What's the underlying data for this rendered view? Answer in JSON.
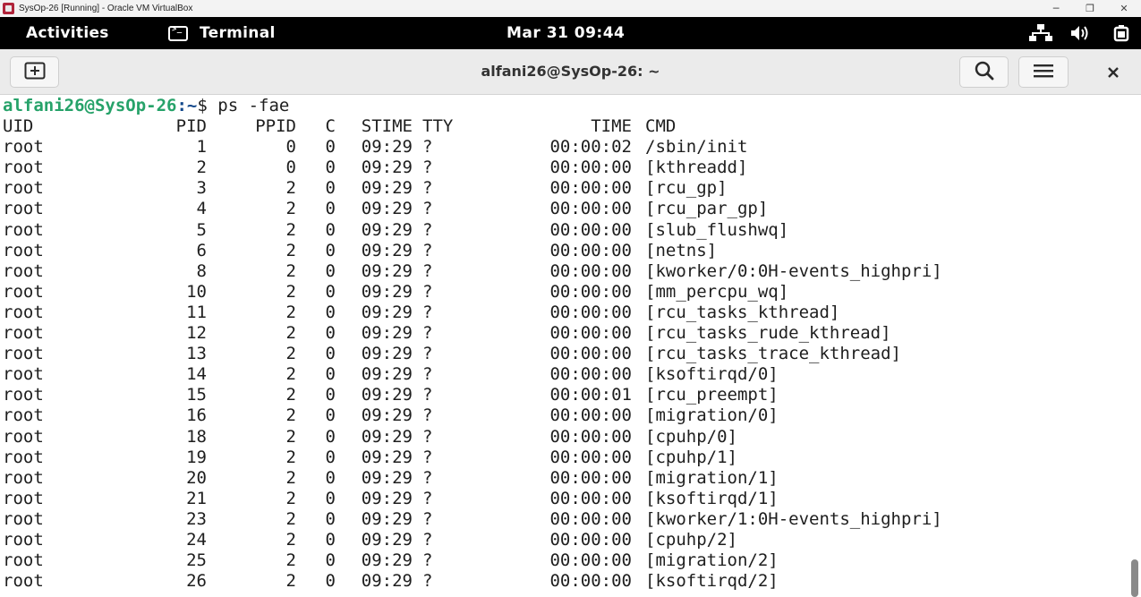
{
  "vbox": {
    "title": "SysOp-26 [Running] - Oracle VM VirtualBox",
    "minimize": "─",
    "restore": "❐",
    "close": "✕"
  },
  "gnome": {
    "activities": "Activities",
    "app_name": "Terminal",
    "clock": "Mar 31  09:44",
    "tray_icons": [
      "network-icon",
      "volume-icon",
      "battery-icon"
    ]
  },
  "terminal": {
    "title": "alfani26@SysOp-26: ~",
    "prompt_user": "alfani26@SysOp-26",
    "prompt_path": ":~",
    "prompt_symbol": "$ ",
    "command": "ps -fae",
    "headers": {
      "uid": "UID",
      "pid": "PID",
      "ppid": "PPID",
      "c": "C",
      "stime": "STIME",
      "tty": "TTY",
      "time": "TIME",
      "cmd": "CMD"
    },
    "rows": [
      {
        "uid": "root",
        "pid": "1",
        "ppid": "0",
        "c": "0",
        "stime": "09:29",
        "tty": "?",
        "time": "00:00:02",
        "cmd": "/sbin/init"
      },
      {
        "uid": "root",
        "pid": "2",
        "ppid": "0",
        "c": "0",
        "stime": "09:29",
        "tty": "?",
        "time": "00:00:00",
        "cmd": "[kthreadd]"
      },
      {
        "uid": "root",
        "pid": "3",
        "ppid": "2",
        "c": "0",
        "stime": "09:29",
        "tty": "?",
        "time": "00:00:00",
        "cmd": "[rcu_gp]"
      },
      {
        "uid": "root",
        "pid": "4",
        "ppid": "2",
        "c": "0",
        "stime": "09:29",
        "tty": "?",
        "time": "00:00:00",
        "cmd": "[rcu_par_gp]"
      },
      {
        "uid": "root",
        "pid": "5",
        "ppid": "2",
        "c": "0",
        "stime": "09:29",
        "tty": "?",
        "time": "00:00:00",
        "cmd": "[slub_flushwq]"
      },
      {
        "uid": "root",
        "pid": "6",
        "ppid": "2",
        "c": "0",
        "stime": "09:29",
        "tty": "?",
        "time": "00:00:00",
        "cmd": "[netns]"
      },
      {
        "uid": "root",
        "pid": "8",
        "ppid": "2",
        "c": "0",
        "stime": "09:29",
        "tty": "?",
        "time": "00:00:00",
        "cmd": "[kworker/0:0H-events_highpri]"
      },
      {
        "uid": "root",
        "pid": "10",
        "ppid": "2",
        "c": "0",
        "stime": "09:29",
        "tty": "?",
        "time": "00:00:00",
        "cmd": "[mm_percpu_wq]"
      },
      {
        "uid": "root",
        "pid": "11",
        "ppid": "2",
        "c": "0",
        "stime": "09:29",
        "tty": "?",
        "time": "00:00:00",
        "cmd": "[rcu_tasks_kthread]"
      },
      {
        "uid": "root",
        "pid": "12",
        "ppid": "2",
        "c": "0",
        "stime": "09:29",
        "tty": "?",
        "time": "00:00:00",
        "cmd": "[rcu_tasks_rude_kthread]"
      },
      {
        "uid": "root",
        "pid": "13",
        "ppid": "2",
        "c": "0",
        "stime": "09:29",
        "tty": "?",
        "time": "00:00:00",
        "cmd": "[rcu_tasks_trace_kthread]"
      },
      {
        "uid": "root",
        "pid": "14",
        "ppid": "2",
        "c": "0",
        "stime": "09:29",
        "tty": "?",
        "time": "00:00:00",
        "cmd": "[ksoftirqd/0]"
      },
      {
        "uid": "root",
        "pid": "15",
        "ppid": "2",
        "c": "0",
        "stime": "09:29",
        "tty": "?",
        "time": "00:00:01",
        "cmd": "[rcu_preempt]"
      },
      {
        "uid": "root",
        "pid": "16",
        "ppid": "2",
        "c": "0",
        "stime": "09:29",
        "tty": "?",
        "time": "00:00:00",
        "cmd": "[migration/0]"
      },
      {
        "uid": "root",
        "pid": "18",
        "ppid": "2",
        "c": "0",
        "stime": "09:29",
        "tty": "?",
        "time": "00:00:00",
        "cmd": "[cpuhp/0]"
      },
      {
        "uid": "root",
        "pid": "19",
        "ppid": "2",
        "c": "0",
        "stime": "09:29",
        "tty": "?",
        "time": "00:00:00",
        "cmd": "[cpuhp/1]"
      },
      {
        "uid": "root",
        "pid": "20",
        "ppid": "2",
        "c": "0",
        "stime": "09:29",
        "tty": "?",
        "time": "00:00:00",
        "cmd": "[migration/1]"
      },
      {
        "uid": "root",
        "pid": "21",
        "ppid": "2",
        "c": "0",
        "stime": "09:29",
        "tty": "?",
        "time": "00:00:00",
        "cmd": "[ksoftirqd/1]"
      },
      {
        "uid": "root",
        "pid": "23",
        "ppid": "2",
        "c": "0",
        "stime": "09:29",
        "tty": "?",
        "time": "00:00:00",
        "cmd": "[kworker/1:0H-events_highpri]"
      },
      {
        "uid": "root",
        "pid": "24",
        "ppid": "2",
        "c": "0",
        "stime": "09:29",
        "tty": "?",
        "time": "00:00:00",
        "cmd": "[cpuhp/2]"
      },
      {
        "uid": "root",
        "pid": "25",
        "ppid": "2",
        "c": "0",
        "stime": "09:29",
        "tty": "?",
        "time": "00:00:00",
        "cmd": "[migration/2]"
      },
      {
        "uid": "root",
        "pid": "26",
        "ppid": "2",
        "c": "0",
        "stime": "09:29",
        "tty": "?",
        "time": "00:00:00",
        "cmd": "[ksoftirqd/2]"
      }
    ]
  },
  "colors": {
    "prompt_user": "#26a269",
    "prompt_path": "#12488b",
    "gnome_bar": "#000000",
    "header_bar": "#ebebeb"
  }
}
